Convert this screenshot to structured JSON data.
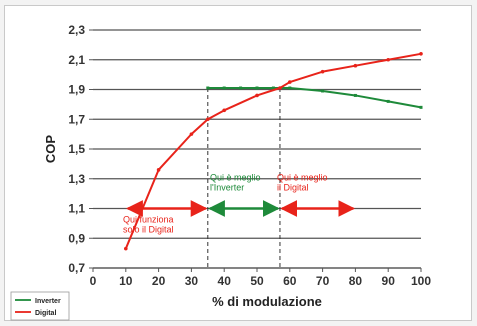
{
  "chart_data": {
    "type": "line",
    "xlabel": "% di modulazione",
    "ylabel": "COP",
    "xlim": [
      0,
      100
    ],
    "ylim": [
      0.7,
      2.3
    ],
    "xticks": [
      0,
      10,
      20,
      30,
      40,
      50,
      60,
      70,
      80,
      90,
      100
    ],
    "yticks": [
      0.7,
      0.9,
      1.1,
      1.3,
      1.5,
      1.7,
      1.9,
      2.1,
      2.3
    ],
    "ytick_labels": [
      "0,7",
      "0,9",
      "1,1",
      "1,3",
      "1,5",
      "1,7",
      "1,9",
      "2,1",
      "2,3"
    ],
    "grid": "horizontal",
    "series": [
      {
        "name": "Inverter",
        "color": "#1e8a3a",
        "x": [
          35,
          40,
          45,
          50,
          55,
          60,
          70,
          80,
          90,
          100
        ],
        "y": [
          1.91,
          1.91,
          1.91,
          1.91,
          1.91,
          1.91,
          1.89,
          1.86,
          1.82,
          1.78
        ]
      },
      {
        "name": "Digital",
        "color": "#e8231a",
        "x": [
          10,
          20,
          30,
          35,
          40,
          50,
          57,
          60,
          70,
          80,
          90,
          100
        ],
        "y": [
          0.83,
          1.36,
          1.6,
          1.7,
          1.76,
          1.86,
          1.91,
          1.95,
          2.02,
          2.06,
          2.1,
          2.14
        ]
      }
    ],
    "reference_lines_x": [
      35,
      57
    ],
    "annotations": [
      {
        "text_lines": [
          "Qui funziona",
          "solo il Digital"
        ],
        "color": "#e8231a",
        "arrow_from": 10,
        "arrow_to": 35,
        "y": 1.1
      },
      {
        "text_lines": [
          "Qui è meglio",
          "l'Inverter"
        ],
        "color": "#1e8a3a",
        "arrow_from": 35,
        "arrow_to": 57,
        "y": 1.1
      },
      {
        "text_lines": [
          "Qui è meglio",
          "il Digital"
        ],
        "color": "#e8231a",
        "arrow_from": 57,
        "arrow_to": 80,
        "y": 1.1
      }
    ],
    "legend": {
      "position": "bottom-left",
      "entries": [
        "Inverter",
        "Digital"
      ]
    }
  }
}
